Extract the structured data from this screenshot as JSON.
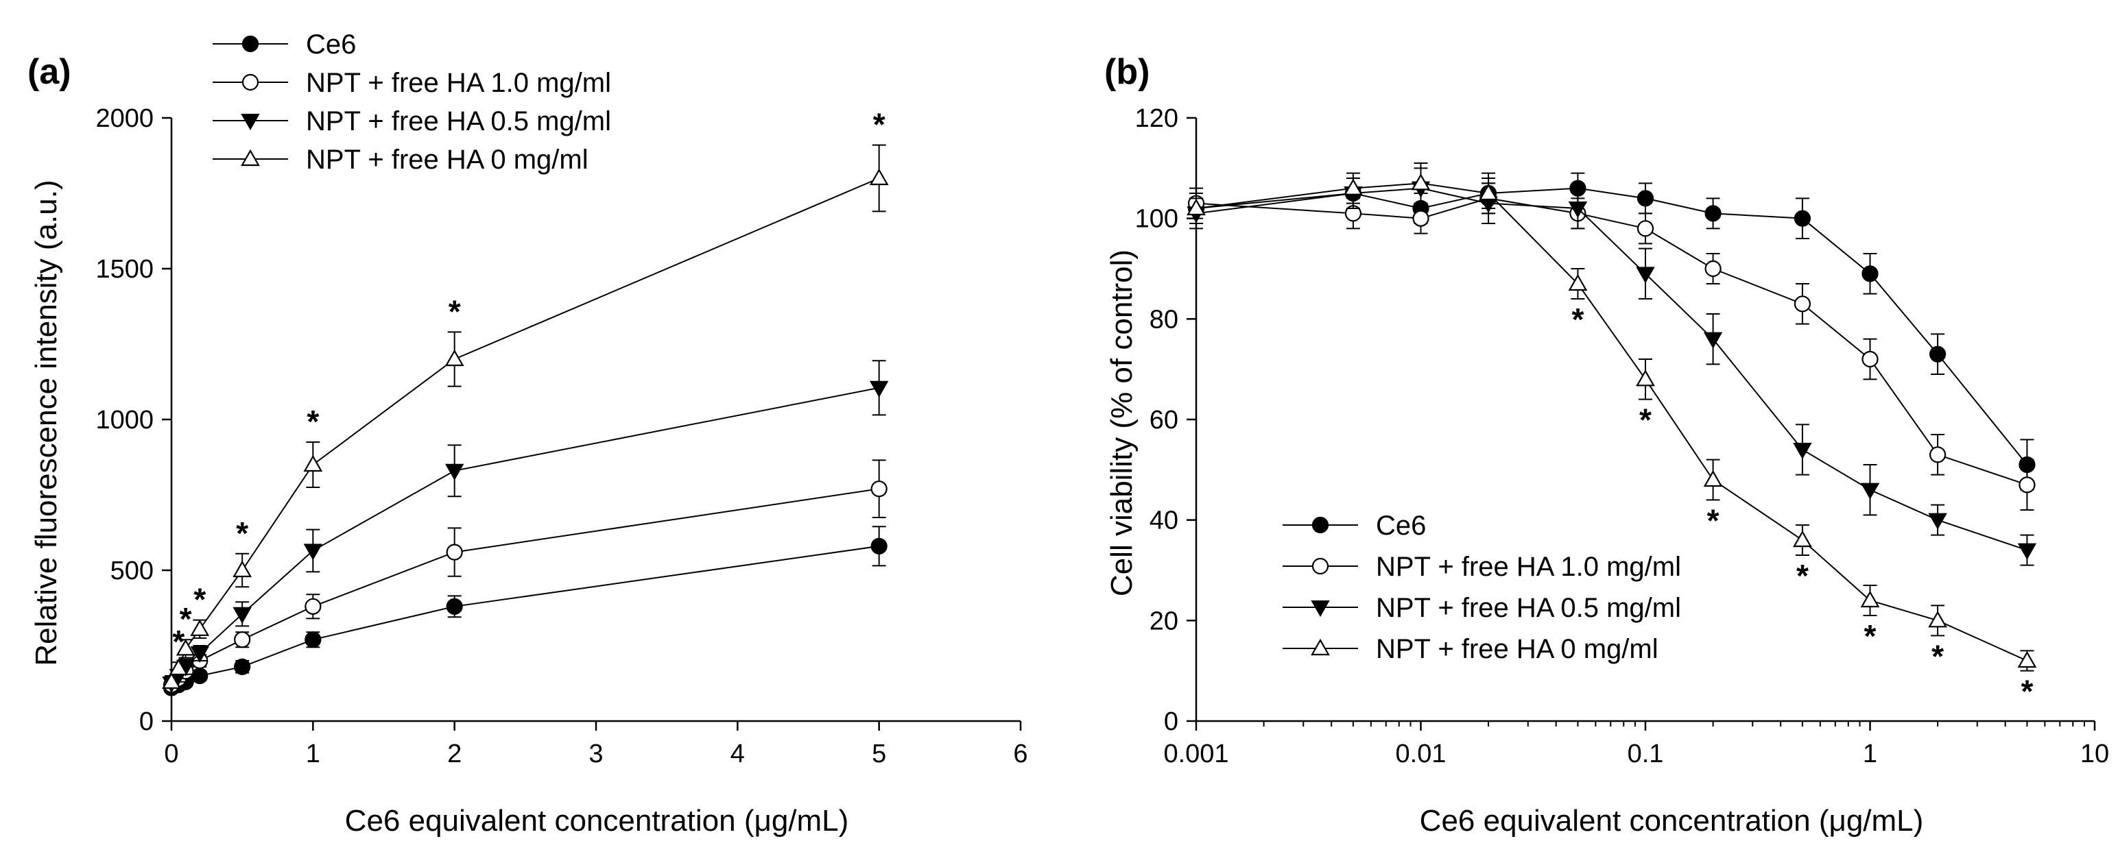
{
  "chart_data": [
    {
      "panel": "(a)",
      "type": "line",
      "xlabel": "Ce6 equivalent concentration (μg/mL)",
      "ylabel": "Relative fluorescence intensity (a.u.)",
      "xlim": [
        0,
        6
      ],
      "ylim": [
        0,
        2000
      ],
      "xticks": [
        0,
        1,
        2,
        3,
        4,
        5,
        6
      ],
      "yticks": [
        0,
        500,
        1000,
        1500,
        2000
      ],
      "grid": false,
      "legend_position": "top-left",
      "x": [
        0,
        0.05,
        0.1,
        0.2,
        0.5,
        1,
        2,
        5
      ],
      "series": [
        {
          "name": "Ce6",
          "marker": "filled-circle",
          "values": [
            110,
            120,
            130,
            150,
            180,
            270,
            380,
            580
          ],
          "errors": [
            15,
            15,
            15,
            15,
            20,
            25,
            35,
            65
          ]
        },
        {
          "name": "NPT + free HA 1.0 mg/ml",
          "marker": "open-circle",
          "values": [
            120,
            140,
            165,
            200,
            270,
            380,
            560,
            770
          ],
          "errors": [
            15,
            15,
            20,
            20,
            25,
            40,
            80,
            95
          ]
        },
        {
          "name": "NPT + free HA 0.5 mg/ml",
          "marker": "filled-triangle-down",
          "values": [
            125,
            150,
            180,
            225,
            355,
            565,
            830,
            1105
          ],
          "errors": [
            15,
            20,
            25,
            25,
            40,
            70,
            85,
            90
          ]
        },
        {
          "name": "NPT + free HA 0 mg/ml",
          "marker": "open-triangle-up",
          "values": [
            130,
            175,
            240,
            305,
            500,
            850,
            1200,
            1800
          ],
          "errors": [
            20,
            20,
            30,
            30,
            55,
            75,
            90,
            110
          ]
        }
      ],
      "significance": {
        "symbol": "*",
        "x": [
          0.05,
          0.1,
          0.2,
          0.5,
          1,
          2,
          5
        ]
      }
    },
    {
      "panel": "(b)",
      "type": "line",
      "xscale": "log",
      "xlabel": "Ce6 equivalent concentration (μg/mL)",
      "ylabel": "Cell viability (% of control)",
      "xlim": [
        0.001,
        10
      ],
      "ylim": [
        0,
        120
      ],
      "xticks": [
        "0.001",
        "0.01",
        "0.1",
        "1",
        "10"
      ],
      "yticks": [
        0,
        20,
        40,
        60,
        80,
        100,
        120
      ],
      "grid": false,
      "legend_position": "bottom-left",
      "x": [
        0.001,
        0.005,
        0.01,
        0.02,
        0.05,
        0.1,
        0.2,
        0.5,
        1,
        2,
        5
      ],
      "series": [
        {
          "name": "Ce6",
          "marker": "filled-circle",
          "values": [
            102,
            105,
            102,
            105,
            106,
            104,
            101,
            100,
            89,
            73,
            51
          ],
          "errors": [
            3,
            3,
            3,
            3,
            3,
            3,
            3,
            4,
            4,
            4,
            5
          ]
        },
        {
          "name": "NPT + free HA 1.0 mg/ml",
          "marker": "open-circle",
          "values": [
            103,
            101,
            100,
            104,
            101,
            98,
            90,
            83,
            72,
            53,
            47
          ],
          "errors": [
            3,
            3,
            3,
            3,
            3,
            3,
            3,
            4,
            4,
            4,
            5
          ]
        },
        {
          "name": "NPT + free HA 0.5 mg/ml",
          "marker": "filled-triangle-down",
          "values": [
            101,
            105,
            106,
            103,
            102,
            89,
            76,
            54,
            46,
            40,
            34
          ],
          "errors": [
            3,
            3,
            4,
            4,
            4,
            5,
            5,
            5,
            5,
            3,
            3
          ]
        },
        {
          "name": "NPT + free HA 0 mg/ml",
          "marker": "open-triangle-up",
          "values": [
            102,
            106,
            107,
            105,
            87,
            68,
            48,
            36,
            24,
            20,
            12
          ],
          "errors": [
            3,
            3,
            4,
            4,
            3,
            4,
            4,
            3,
            3,
            3,
            2
          ]
        }
      ],
      "significance": {
        "symbol": "*",
        "x": [
          0.05,
          0.1,
          0.2,
          0.5,
          1,
          2,
          5
        ]
      }
    }
  ]
}
